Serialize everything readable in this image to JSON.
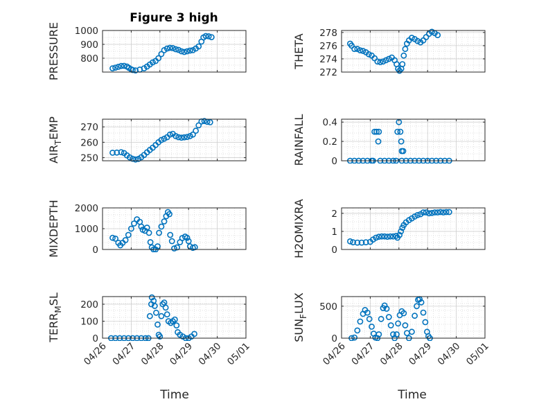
{
  "figure_title": "Figure 3 high",
  "marker_color": "#0072BD",
  "xticks": [
    "04/26",
    "04/27",
    "04/28",
    "04/29",
    "04/30",
    "05/01"
  ],
  "xlabel": "Time",
  "chart_data": [
    {
      "type": "scatter",
      "title": "Figure 3 high",
      "ylabel": "PRESSURE",
      "ylabel_sub": null,
      "xlim": [
        0,
        5
      ],
      "ylim": [
        700,
        1000
      ],
      "yticks": [
        800,
        900,
        1000
      ],
      "grid": true,
      "points": [
        [
          0.35,
          727
        ],
        [
          0.45,
          732
        ],
        [
          0.55,
          738
        ],
        [
          0.65,
          744
        ],
        [
          0.75,
          745
        ],
        [
          0.85,
          740
        ],
        [
          0.92,
          730
        ],
        [
          1.0,
          720
        ],
        [
          1.05,
          715
        ],
        [
          1.15,
          712
        ],
        [
          1.3,
          718
        ],
        [
          1.45,
          727
        ],
        [
          1.55,
          740
        ],
        [
          1.65,
          755
        ],
        [
          1.75,
          770
        ],
        [
          1.85,
          780
        ],
        [
          1.95,
          800
        ],
        [
          2.05,
          830
        ],
        [
          2.15,
          858
        ],
        [
          2.25,
          870
        ],
        [
          2.35,
          875
        ],
        [
          2.45,
          873
        ],
        [
          2.55,
          865
        ],
        [
          2.65,
          860
        ],
        [
          2.75,
          850
        ],
        [
          2.85,
          845
        ],
        [
          2.95,
          850
        ],
        [
          3.05,
          855
        ],
        [
          3.15,
          858
        ],
        [
          3.25,
          870
        ],
        [
          3.35,
          885
        ],
        [
          3.45,
          920
        ],
        [
          3.52,
          950
        ],
        [
          3.6,
          960
        ],
        [
          3.7,
          958
        ],
        [
          3.8,
          952
        ]
      ]
    },
    {
      "type": "scatter",
      "ylabel": "THETA",
      "ylabel_sub": null,
      "xlim": [
        0,
        5
      ],
      "ylim": [
        272,
        278.3
      ],
      "yticks": [
        272,
        274,
        276,
        278
      ],
      "grid": true,
      "points": [
        [
          0.3,
          276.3
        ],
        [
          0.35,
          276.0
        ],
        [
          0.45,
          275.5
        ],
        [
          0.55,
          275.5
        ],
        [
          0.65,
          275.3
        ],
        [
          0.75,
          275.2
        ],
        [
          0.85,
          275.0
        ],
        [
          0.95,
          274.7
        ],
        [
          1.05,
          274.5
        ],
        [
          1.15,
          274.1
        ],
        [
          1.25,
          273.6
        ],
        [
          1.35,
          273.5
        ],
        [
          1.45,
          273.6
        ],
        [
          1.55,
          273.8
        ],
        [
          1.65,
          274.0
        ],
        [
          1.75,
          274.2
        ],
        [
          1.85,
          273.8
        ],
        [
          1.92,
          273.2
        ],
        [
          1.97,
          272.5
        ],
        [
          2.02,
          272.2
        ],
        [
          2.08,
          272.5
        ],
        [
          2.12,
          273.2
        ],
        [
          2.17,
          274.5
        ],
        [
          2.22,
          275.5
        ],
        [
          2.28,
          276.3
        ],
        [
          2.35,
          276.8
        ],
        [
          2.45,
          277.2
        ],
        [
          2.55,
          277.0
        ],
        [
          2.65,
          276.7
        ],
        [
          2.75,
          276.5
        ],
        [
          2.85,
          276.8
        ],
        [
          2.95,
          277.3
        ],
        [
          3.05,
          277.8
        ],
        [
          3.15,
          278.1
        ],
        [
          3.25,
          277.9
        ],
        [
          3.35,
          277.6
        ]
      ]
    },
    {
      "type": "scatter",
      "ylabel": "AIR",
      "ylabel_sub": "T",
      "ylabel_tail": "EMP",
      "xlim": [
        0,
        5
      ],
      "ylim": [
        248,
        275
      ],
      "yticks": [
        250,
        260,
        270
      ],
      "grid": true,
      "points": [
        [
          0.35,
          253.2
        ],
        [
          0.5,
          253.3
        ],
        [
          0.65,
          253.6
        ],
        [
          0.75,
          253.0
        ],
        [
          0.85,
          251.5
        ],
        [
          0.95,
          250.2
        ],
        [
          1.05,
          249.3
        ],
        [
          1.15,
          248.8
        ],
        [
          1.25,
          249.2
        ],
        [
          1.35,
          250.3
        ],
        [
          1.45,
          251.8
        ],
        [
          1.55,
          253.5
        ],
        [
          1.65,
          255.0
        ],
        [
          1.75,
          256.5
        ],
        [
          1.85,
          258.2
        ],
        [
          1.95,
          260.0
        ],
        [
          2.05,
          261.5
        ],
        [
          2.15,
          262.3
        ],
        [
          2.25,
          263.3
        ],
        [
          2.35,
          265.0
        ],
        [
          2.45,
          265.5
        ],
        [
          2.55,
          264.0
        ],
        [
          2.65,
          263.3
        ],
        [
          2.75,
          263.0
        ],
        [
          2.85,
          263.2
        ],
        [
          2.95,
          263.5
        ],
        [
          3.05,
          264.0
        ],
        [
          3.15,
          265.0
        ],
        [
          3.25,
          267.5
        ],
        [
          3.35,
          271.0
        ],
        [
          3.45,
          273.5
        ],
        [
          3.55,
          273.8
        ],
        [
          3.65,
          273.3
        ],
        [
          3.75,
          273.0
        ]
      ]
    },
    {
      "type": "scatter",
      "ylabel": "RAINFALL",
      "ylabel_sub": null,
      "xlim": [
        0,
        5
      ],
      "ylim": [
        0,
        0.43
      ],
      "yticks": [
        0,
        0.2,
        0.4
      ],
      "grid": true,
      "points": [
        [
          0.3,
          0
        ],
        [
          0.45,
          0
        ],
        [
          0.6,
          0
        ],
        [
          0.75,
          0
        ],
        [
          0.9,
          0
        ],
        [
          1.05,
          0
        ],
        [
          1.1,
          0
        ],
        [
          1.15,
          0.3
        ],
        [
          1.22,
          0.3
        ],
        [
          1.3,
          0.3
        ],
        [
          1.28,
          0.2
        ],
        [
          1.35,
          0
        ],
        [
          1.5,
          0
        ],
        [
          1.65,
          0
        ],
        [
          1.8,
          0
        ],
        [
          1.9,
          0
        ],
        [
          1.95,
          0.3
        ],
        [
          2.0,
          0.4
        ],
        [
          2.05,
          0.3
        ],
        [
          2.08,
          0.2
        ],
        [
          2.1,
          0.1
        ],
        [
          2.15,
          0.1
        ],
        [
          2.1,
          0
        ],
        [
          2.25,
          0
        ],
        [
          2.4,
          0
        ],
        [
          2.55,
          0
        ],
        [
          2.7,
          0
        ],
        [
          2.85,
          0
        ],
        [
          3.0,
          0
        ],
        [
          3.15,
          0
        ],
        [
          3.3,
          0
        ],
        [
          3.45,
          0
        ],
        [
          3.6,
          0
        ],
        [
          3.75,
          0
        ]
      ]
    },
    {
      "type": "scatter",
      "ylabel": "MIXDEPTH",
      "ylabel_sub": null,
      "xlim": [
        0,
        5
      ],
      "ylim": [
        0,
        2000
      ],
      "yticks": [
        0,
        1000,
        2000
      ],
      "grid": true,
      "points": [
        [
          0.35,
          560
        ],
        [
          0.45,
          520
        ],
        [
          0.55,
          320
        ],
        [
          0.62,
          200
        ],
        [
          0.7,
          320
        ],
        [
          0.8,
          450
        ],
        [
          0.9,
          700
        ],
        [
          1.0,
          1000
        ],
        [
          1.1,
          1250
        ],
        [
          1.2,
          1450
        ],
        [
          1.3,
          1330
        ],
        [
          1.35,
          1100
        ],
        [
          1.4,
          950
        ],
        [
          1.48,
          900
        ],
        [
          1.55,
          1050
        ],
        [
          1.62,
          800
        ],
        [
          1.67,
          350
        ],
        [
          1.72,
          100
        ],
        [
          1.78,
          0
        ],
        [
          1.85,
          0
        ],
        [
          1.92,
          150
        ],
        [
          1.97,
          800
        ],
        [
          2.05,
          1100
        ],
        [
          2.15,
          1350
        ],
        [
          2.22,
          1600
        ],
        [
          2.28,
          1800
        ],
        [
          2.33,
          1700
        ],
        [
          2.36,
          700
        ],
        [
          2.42,
          400
        ],
        [
          2.5,
          50
        ],
        [
          2.6,
          100
        ],
        [
          2.7,
          350
        ],
        [
          2.78,
          550
        ],
        [
          2.88,
          620
        ],
        [
          2.95,
          560
        ],
        [
          3.0,
          400
        ],
        [
          3.05,
          150
        ],
        [
          3.15,
          80
        ],
        [
          3.22,
          110
        ]
      ]
    },
    {
      "type": "scatter",
      "ylabel": "H2OMIXRA",
      "ylabel_sub": null,
      "xlim": [
        0,
        5
      ],
      "ylim": [
        0,
        2.3
      ],
      "yticks": [
        0,
        1,
        2
      ],
      "grid": true,
      "points": [
        [
          0.3,
          0.45
        ],
        [
          0.4,
          0.4
        ],
        [
          0.55,
          0.38
        ],
        [
          0.7,
          0.38
        ],
        [
          0.85,
          0.4
        ],
        [
          1.0,
          0.42
        ],
        [
          1.1,
          0.55
        ],
        [
          1.2,
          0.65
        ],
        [
          1.3,
          0.7
        ],
        [
          1.4,
          0.72
        ],
        [
          1.5,
          0.72
        ],
        [
          1.6,
          0.7
        ],
        [
          1.7,
          0.72
        ],
        [
          1.8,
          0.72
        ],
        [
          1.9,
          0.75
        ],
        [
          1.95,
          0.65
        ],
        [
          2.02,
          0.8
        ],
        [
          2.07,
          1.0
        ],
        [
          2.12,
          1.2
        ],
        [
          2.17,
          1.35
        ],
        [
          2.25,
          1.5
        ],
        [
          2.35,
          1.62
        ],
        [
          2.45,
          1.72
        ],
        [
          2.55,
          1.82
        ],
        [
          2.65,
          1.9
        ],
        [
          2.75,
          1.95
        ],
        [
          2.85,
          2.05
        ],
        [
          2.95,
          2.05
        ],
        [
          3.05,
          2.0
        ],
        [
          3.15,
          2.02
        ],
        [
          3.25,
          2.05
        ],
        [
          3.35,
          2.05
        ],
        [
          3.45,
          2.07
        ],
        [
          3.55,
          2.05
        ],
        [
          3.65,
          2.07
        ],
        [
          3.75,
          2.07
        ]
      ]
    },
    {
      "type": "scatter",
      "ylabel": "TERR",
      "ylabel_sub": "M",
      "ylabel_tail": "SL",
      "xlim": [
        0,
        5
      ],
      "ylim": [
        0,
        245
      ],
      "yticks": [
        0,
        100,
        200
      ],
      "grid": true,
      "points": [
        [
          0.3,
          0
        ],
        [
          0.45,
          0
        ],
        [
          0.6,
          0
        ],
        [
          0.75,
          0
        ],
        [
          0.9,
          0
        ],
        [
          1.05,
          0
        ],
        [
          1.2,
          0
        ],
        [
          1.35,
          0
        ],
        [
          1.5,
          0
        ],
        [
          1.6,
          0
        ],
        [
          1.65,
          130
        ],
        [
          1.7,
          200
        ],
        [
          1.72,
          240
        ],
        [
          1.78,
          220
        ],
        [
          1.82,
          190
        ],
        [
          1.87,
          150
        ],
        [
          1.92,
          80
        ],
        [
          1.96,
          20
        ],
        [
          2.0,
          10
        ],
        [
          2.05,
          130
        ],
        [
          2.1,
          200
        ],
        [
          2.15,
          210
        ],
        [
          2.2,
          180
        ],
        [
          2.25,
          140
        ],
        [
          2.3,
          100
        ],
        [
          2.38,
          90
        ],
        [
          2.45,
          100
        ],
        [
          2.52,
          110
        ],
        [
          2.58,
          75
        ],
        [
          2.62,
          35
        ],
        [
          2.7,
          20
        ],
        [
          2.8,
          10
        ],
        [
          2.9,
          0
        ],
        [
          3.0,
          0
        ],
        [
          3.1,
          10
        ],
        [
          3.2,
          25
        ]
      ]
    },
    {
      "type": "scatter",
      "ylabel": "SUN",
      "ylabel_sub": "F",
      "ylabel_tail": "LUX",
      "xlim": [
        0,
        5
      ],
      "ylim": [
        0,
        650
      ],
      "yticks": [
        0,
        500
      ],
      "grid": true,
      "points": [
        [
          0.35,
          0
        ],
        [
          0.45,
          10
        ],
        [
          0.55,
          120
        ],
        [
          0.65,
          260
        ],
        [
          0.75,
          380
        ],
        [
          0.82,
          440
        ],
        [
          0.9,
          400
        ],
        [
          0.97,
          300
        ],
        [
          1.05,
          180
        ],
        [
          1.12,
          70
        ],
        [
          1.18,
          10
        ],
        [
          1.25,
          0
        ],
        [
          1.3,
          60
        ],
        [
          1.38,
          300
        ],
        [
          1.45,
          470
        ],
        [
          1.5,
          510
        ],
        [
          1.57,
          460
        ],
        [
          1.65,
          330
        ],
        [
          1.72,
          200
        ],
        [
          1.8,
          60
        ],
        [
          1.85,
          0
        ],
        [
          1.92,
          60
        ],
        [
          1.97,
          230
        ],
        [
          2.03,
          360
        ],
        [
          2.1,
          420
        ],
        [
          2.17,
          390
        ],
        [
          2.22,
          200
        ],
        [
          2.28,
          80
        ],
        [
          2.35,
          0
        ],
        [
          2.45,
          100
        ],
        [
          2.55,
          350
        ],
        [
          2.62,
          500
        ],
        [
          2.67,
          600
        ],
        [
          2.72,
          610
        ],
        [
          2.78,
          560
        ],
        [
          2.85,
          400
        ],
        [
          2.92,
          250
        ],
        [
          2.98,
          100
        ],
        [
          3.03,
          30
        ],
        [
          3.08,
          0
        ]
      ]
    }
  ]
}
